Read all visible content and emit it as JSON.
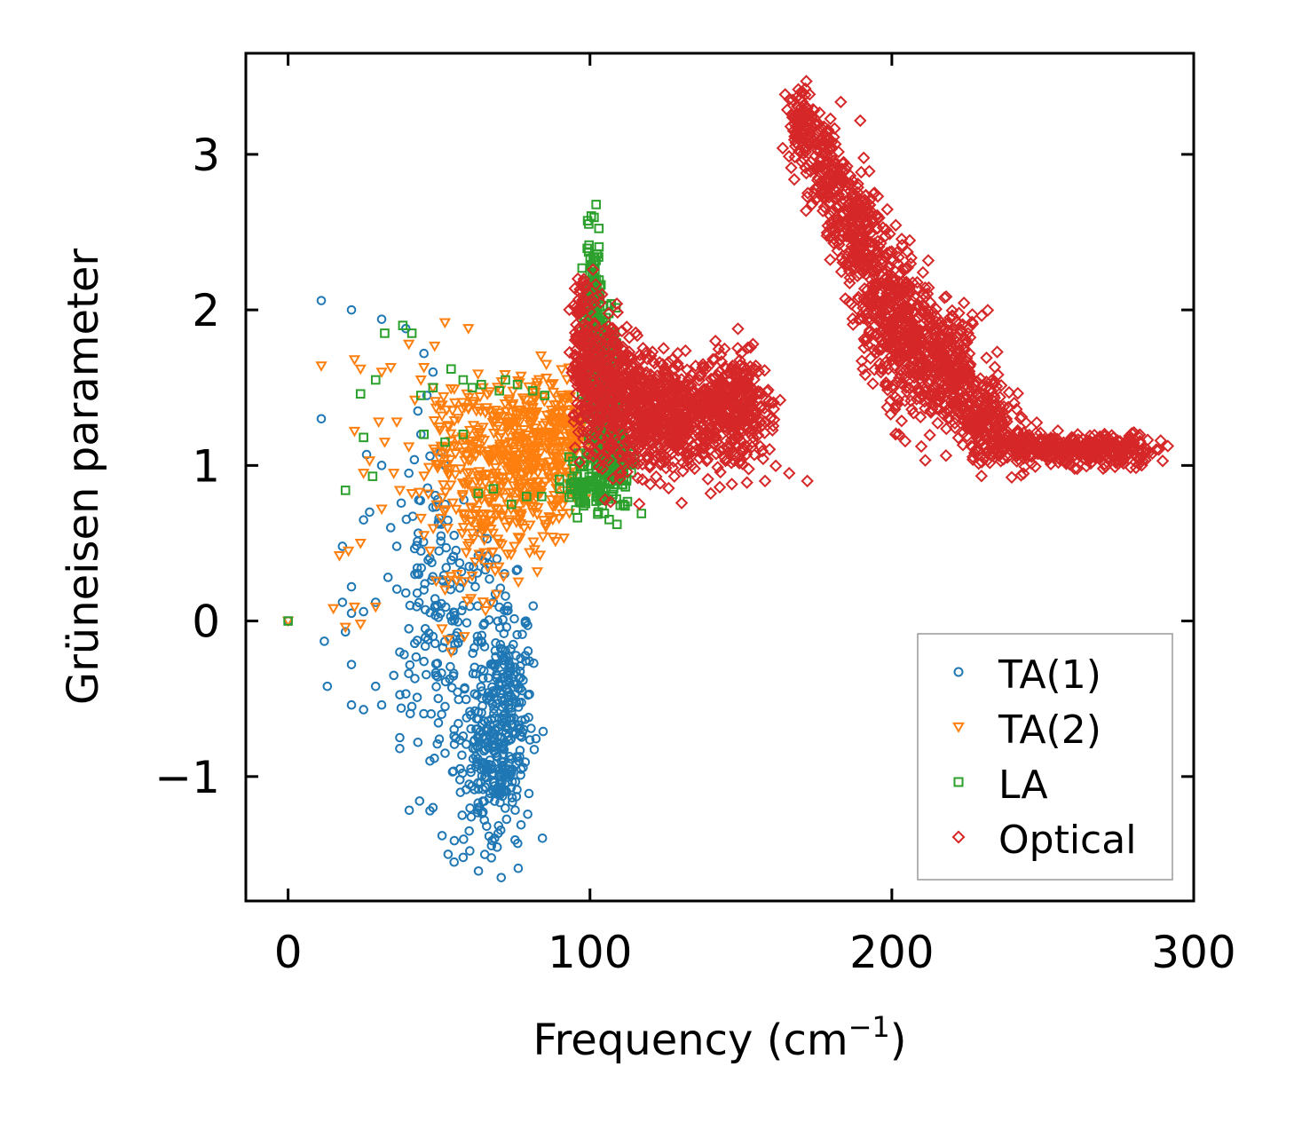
{
  "chart_data": {
    "type": "scatter",
    "xlabel": "Frequency (cm",
    "xlabel_sup": "−1",
    "xlabel_end": ")",
    "ylabel": "Grüneisen parameter",
    "xlim": [
      -14,
      300
    ],
    "ylim": [
      -1.8,
      3.65
    ],
    "xticks": [
      0,
      100,
      200,
      300
    ],
    "yticks": [
      -1,
      0,
      1,
      2,
      3
    ],
    "ytick_labels": [
      "−1",
      "0",
      "1",
      "2",
      "3"
    ],
    "legend_position": "lower-right",
    "series": [
      {
        "name": "TA(1)",
        "marker": "circle",
        "color": "#1f77b4",
        "points": [
          [
            0,
            0
          ],
          [
            11,
            2.06
          ],
          [
            21,
            2.0
          ],
          [
            31,
            1.94
          ],
          [
            39,
            1.88
          ],
          [
            45,
            1.72
          ],
          [
            11,
            1.3
          ],
          [
            26,
            1.07
          ],
          [
            31,
            1.0
          ],
          [
            40,
            0.95
          ],
          [
            47,
            1.06
          ],
          [
            52,
            1.0
          ],
          [
            25,
            0.65
          ],
          [
            27,
            0.7
          ],
          [
            34,
            0.6
          ],
          [
            36,
            0.48
          ],
          [
            18,
            0.48
          ],
          [
            21,
            0.22
          ],
          [
            18,
            0.12
          ],
          [
            21,
            0.05
          ],
          [
            25,
            0.06
          ],
          [
            29,
            0.12
          ],
          [
            12,
            -0.13
          ],
          [
            19,
            -0.07
          ],
          [
            21,
            -0.28
          ],
          [
            13,
            -0.42
          ],
          [
            21,
            -0.54
          ],
          [
            25,
            -0.57
          ],
          [
            29,
            -0.42
          ],
          [
            31,
            -0.54
          ],
          [
            35,
            -0.35
          ],
          [
            42,
            -0.37
          ],
          [
            37,
            -0.2
          ],
          [
            40,
            -0.05
          ],
          [
            39,
            0.18
          ],
          [
            45,
            0.2
          ],
          [
            45,
            -0.26
          ],
          [
            41,
            -0.55
          ],
          [
            37,
            -0.75
          ],
          [
            37,
            -0.82
          ],
          [
            43,
            -0.78
          ],
          [
            47,
            -0.9
          ],
          [
            48,
            -1.2
          ],
          [
            47,
            -1.22
          ],
          [
            51,
            -1.38
          ],
          [
            53,
            -1.5
          ],
          [
            55,
            -1.55
          ],
          [
            58,
            -1.52
          ],
          [
            44,
            0.45
          ],
          [
            42,
            0.3
          ],
          [
            50,
            0.45
          ],
          [
            55,
            0.55
          ],
          [
            60,
            0.35
          ],
          [
            62,
            0.22
          ],
          [
            65,
            0.38
          ],
          [
            68,
            0.12
          ],
          [
            72,
            0.16
          ],
          [
            58,
            0.1
          ],
          [
            48,
            -0.1
          ],
          [
            49,
            -0.35
          ],
          [
            52,
            -0.55
          ],
          [
            55,
            -0.74
          ],
          [
            57,
            -0.95
          ],
          [
            52,
            -0.85
          ],
          [
            60,
            -1.05
          ],
          [
            63,
            -1.2
          ],
          [
            60,
            -1.35
          ],
          [
            65,
            -1.28
          ],
          [
            43,
            1.35
          ],
          [
            46,
            1.45
          ],
          [
            48,
            1.6
          ],
          [
            44,
            1.2
          ],
          [
            52,
            0.75
          ],
          [
            50,
            0.66
          ],
          [
            63,
            0.42
          ]
        ],
        "clusters": [
          {
            "cx": 72,
            "cy": -0.6,
            "sx": 4.5,
            "sy": 0.4,
            "n": 280
          },
          {
            "cx": 65,
            "cy": -0.95,
            "sx": 5,
            "sy": 0.25,
            "n": 120
          },
          {
            "cx": 56,
            "cy": -0.2,
            "sx": 7,
            "sy": 0.4,
            "n": 90
          },
          {
            "cx": 47,
            "cy": 0.25,
            "sx": 6,
            "sy": 0.35,
            "n": 70
          }
        ]
      },
      {
        "name": "TA(2)",
        "marker": "triangle-down",
        "color": "#ff7f0e",
        "points": [
          [
            0,
            0
          ],
          [
            11,
            1.64
          ],
          [
            22,
            1.68
          ],
          [
            24,
            1.62
          ],
          [
            31,
            1.6
          ],
          [
            34,
            1.63
          ],
          [
            40,
            1.78
          ],
          [
            45,
            1.63
          ],
          [
            15,
            0.08
          ],
          [
            22,
            0.09
          ],
          [
            24,
            -0.02
          ],
          [
            19,
            -0.04
          ],
          [
            29,
            0.09
          ],
          [
            17,
            0.42
          ],
          [
            20,
            0.45
          ],
          [
            24,
            0.5
          ],
          [
            31,
            0.72
          ],
          [
            25,
            0.95
          ],
          [
            22,
            1.22
          ],
          [
            30,
            1.28
          ],
          [
            35,
            0.95
          ],
          [
            37,
            0.84
          ],
          [
            41,
            0.82
          ],
          [
            50,
            1.05
          ],
          [
            45,
            0.55
          ],
          [
            52,
            0.2
          ],
          [
            47,
            0.45
          ],
          [
            51,
            -0.05
          ],
          [
            53,
            -0.12
          ],
          [
            54,
            -0.2
          ],
          [
            56,
            0.3
          ],
          [
            59,
            0.44
          ],
          [
            48,
            1.5
          ],
          [
            42,
            1.42
          ],
          [
            44,
            1.55
          ],
          [
            36,
            1.28
          ],
          [
            40,
            1.12
          ],
          [
            60,
            0.5
          ],
          [
            62,
            0.38
          ],
          [
            65,
            0.44
          ],
          [
            70,
            0.5
          ],
          [
            75,
            0.48
          ],
          [
            80,
            0.44
          ],
          [
            27,
            1.03
          ],
          [
            32,
            1.15
          ]
        ],
        "clusters": [
          {
            "cx": 78,
            "cy": 1.05,
            "sx": 9,
            "sy": 0.28,
            "n": 380
          },
          {
            "cx": 92,
            "cy": 1.22,
            "sx": 6,
            "sy": 0.14,
            "n": 120
          },
          {
            "cx": 66,
            "cy": 0.78,
            "sx": 6,
            "sy": 0.3,
            "n": 120
          },
          {
            "cx": 54,
            "cy": 1.05,
            "sx": 5,
            "sy": 0.32,
            "n": 80
          }
        ]
      },
      {
        "name": "LA",
        "marker": "square",
        "color": "#2ca02c",
        "points": [
          [
            0,
            0
          ],
          [
            32,
            1.85
          ],
          [
            38,
            1.9
          ],
          [
            41,
            1.85
          ],
          [
            54,
            1.62
          ],
          [
            44,
            1.45
          ],
          [
            48,
            1.5
          ],
          [
            58,
            1.55
          ],
          [
            61,
            1.5
          ],
          [
            64,
            1.52
          ],
          [
            70,
            1.48
          ],
          [
            72,
            1.55
          ],
          [
            76,
            1.52
          ],
          [
            81,
            1.48
          ],
          [
            85,
            1.45
          ],
          [
            25,
            1.18
          ],
          [
            24,
            1.46
          ],
          [
            29,
            1.55
          ],
          [
            28,
            0.93
          ],
          [
            19,
            0.84
          ],
          [
            45,
            1.2
          ],
          [
            52,
            1.15
          ],
          [
            58,
            1.2
          ],
          [
            63,
            0.82
          ],
          [
            68,
            0.85
          ],
          [
            74,
            0.75
          ],
          [
            79,
            0.8
          ],
          [
            84,
            0.8
          ],
          [
            90,
            0.85
          ],
          [
            97,
            0.76
          ],
          [
            102,
            0.77
          ],
          [
            111,
            0.75
          ]
        ],
        "clusters": [
          {
            "cx": 101,
            "cy": 1.95,
            "sx": 1.2,
            "sy": 0.25,
            "n": 170
          },
          {
            "cx": 104,
            "cy": 1.45,
            "sx": 2.3,
            "sy": 0.28,
            "n": 240
          },
          {
            "cx": 108,
            "cy": 1.08,
            "sx": 3.2,
            "sy": 0.18,
            "n": 180
          },
          {
            "cx": 98,
            "cy": 0.88,
            "sx": 3.5,
            "sy": 0.08,
            "n": 60
          }
        ]
      },
      {
        "name": "Optical",
        "marker": "diamond",
        "color": "#d62728",
        "points": [
          [
            140,
            0.82
          ],
          [
            143,
            0.86
          ],
          [
            147,
            0.88
          ],
          [
            152,
            0.89
          ],
          [
            158,
            0.9
          ],
          [
            166,
            0.95
          ],
          [
            172,
            0.9
          ],
          [
            154,
            1.78
          ],
          [
            151,
            1.63
          ],
          [
            135,
            1.64
          ],
          [
            128,
            1.62
          ],
          [
            113,
            1.73
          ],
          [
            105,
            0.78
          ],
          [
            104,
            2.1
          ],
          [
            96,
            2.2
          ],
          [
            163,
            1.42
          ],
          [
            270,
            0.98
          ],
          [
            285,
            1.08
          ]
        ],
        "clusters": [
          {
            "cx": 170,
            "cy": 3.2,
            "sx": 2.2,
            "sy": 0.12,
            "n": 100
          },
          {
            "cx": 178,
            "cy": 2.9,
            "sx": 3.2,
            "sy": 0.16,
            "n": 140
          },
          {
            "cx": 188,
            "cy": 2.5,
            "sx": 4.2,
            "sy": 0.2,
            "n": 220
          },
          {
            "cx": 198,
            "cy": 2.05,
            "sx": 5,
            "sy": 0.22,
            "n": 260
          },
          {
            "cx": 208,
            "cy": 1.72,
            "sx": 5,
            "sy": 0.22,
            "n": 250
          },
          {
            "cx": 220,
            "cy": 1.62,
            "sx": 5,
            "sy": 0.18,
            "n": 240
          },
          {
            "cx": 230,
            "cy": 1.3,
            "sx": 5,
            "sy": 0.12,
            "n": 170
          },
          {
            "cx": 242,
            "cy": 1.12,
            "sx": 5.5,
            "sy": 0.07,
            "n": 140
          },
          {
            "cx": 258,
            "cy": 1.1,
            "sx": 6,
            "sy": 0.05,
            "n": 130
          },
          {
            "cx": 276,
            "cy": 1.1,
            "sx": 6,
            "sy": 0.05,
            "n": 130
          },
          {
            "cx": 98,
            "cy": 1.7,
            "sx": 2.2,
            "sy": 0.25,
            "n": 150
          },
          {
            "cx": 106,
            "cy": 1.5,
            "sx": 4,
            "sy": 0.25,
            "n": 260
          },
          {
            "cx": 118,
            "cy": 1.35,
            "sx": 5,
            "sy": 0.18,
            "n": 300
          },
          {
            "cx": 130,
            "cy": 1.3,
            "sx": 5,
            "sy": 0.16,
            "n": 260
          },
          {
            "cx": 143,
            "cy": 1.35,
            "sx": 5,
            "sy": 0.16,
            "n": 240
          },
          {
            "cx": 152,
            "cy": 1.35,
            "sx": 4,
            "sy": 0.17,
            "n": 160
          }
        ]
      }
    ]
  }
}
